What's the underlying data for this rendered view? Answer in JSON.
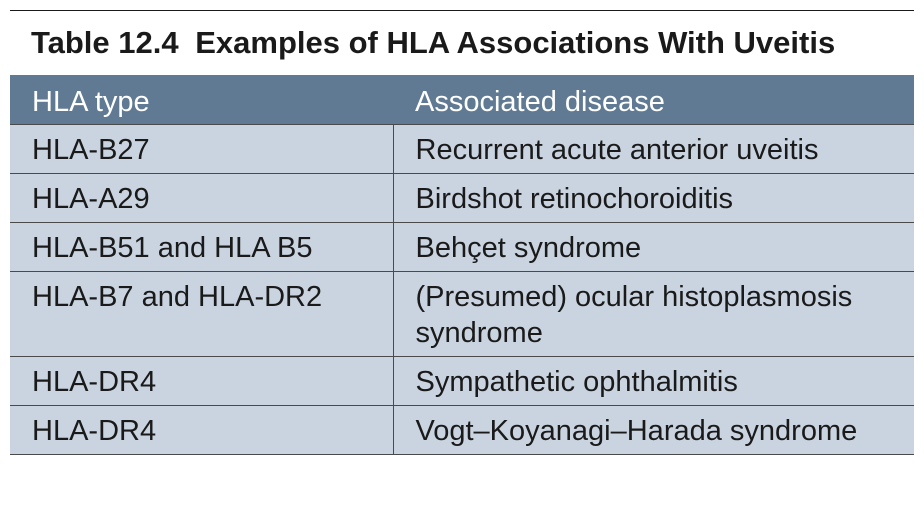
{
  "caption": {
    "number": "Table 12.4",
    "title": "Examples of HLA Associations With Uveitis"
  },
  "table": {
    "headers": [
      "HLA type",
      "Associated disease"
    ],
    "rows": [
      [
        "HLA-B27",
        "Recurrent acute anterior uveitis"
      ],
      [
        "HLA-A29",
        "Birdshot retinochoroiditis"
      ],
      [
        "HLA-B51 and HLA B5",
        "Behçet syndrome"
      ],
      [
        "HLA-B7 and HLA-DR2",
        "(Presumed) ocular histoplasmosis syndrome"
      ],
      [
        "HLA-DR4",
        "Sympathetic ophthalmitis"
      ],
      [
        "HLA-DR4",
        "Vogt–Koyanagi–Harada syndrome"
      ]
    ]
  },
  "colors": {
    "header_bg": "#5f7a92",
    "body_bg": "#c9d4e0",
    "text": "#1a1a1a",
    "header_text": "#ffffff"
  }
}
